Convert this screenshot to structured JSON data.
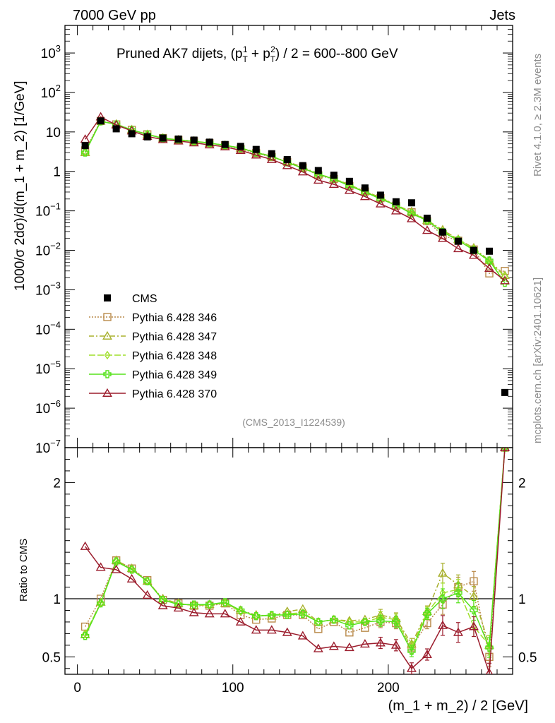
{
  "header": {
    "left": "7000 GeV pp",
    "right": "Jets"
  },
  "side_labels": {
    "top": "Rivet 4.1.0, ≥ 2.3M events",
    "bottom": "mcplots.cern.ch [arXiv:2401.10621]"
  },
  "analysis_id": "(CMS_2013_I1224539)",
  "colors": {
    "cms": "#000000",
    "p346": "#b98a4a",
    "p347": "#a8b02c",
    "p348": "#9fdf2a",
    "p349": "#55e21a",
    "p370": "#9b1c2c",
    "axis": "#000000"
  },
  "chart_data": [
    {
      "type": "line",
      "panel": "main",
      "title_prefix": "Pruned AK7 dijets, ",
      "title_formula": "(p",
      "title_sub1": "T",
      "title_sup1": "1",
      "title_plus": " + p",
      "title_sub2": "T",
      "title_sup2": "2",
      "title_suffix": ") / 2 = 600--800 GeV",
      "ylabel": "1000/σ  2dσ)/d(m_1 + m_2) [1/GeV]",
      "yscale": "log",
      "ylim": [
        1e-07,
        5000
      ],
      "xlim": [
        -8,
        280
      ],
      "y_ticks": [
        {
          "base": "10",
          "exp": "3"
        },
        {
          "base": "10",
          "exp": "2"
        },
        {
          "base": "10",
          "exp": ""
        },
        {
          "base": "1",
          "exp": ""
        },
        {
          "base": "10",
          "exp": "−1"
        },
        {
          "base": "10",
          "exp": "−2"
        },
        {
          "base": "10",
          "exp": "−3"
        },
        {
          "base": "10",
          "exp": "−4"
        },
        {
          "base": "10",
          "exp": "−5"
        },
        {
          "base": "10",
          "exp": "−6"
        },
        {
          "base": "10",
          "exp": "−7"
        }
      ],
      "y_tick_values": [
        1000,
        100,
        10,
        1,
        0.1,
        0.01,
        0.001,
        0.0001,
        1e-05,
        1e-06,
        1e-07
      ],
      "x": [
        5,
        15,
        25,
        35,
        45,
        55,
        65,
        75,
        85,
        95,
        105,
        115,
        125,
        135,
        145,
        155,
        165,
        175,
        185,
        195,
        205,
        215,
        225,
        235,
        245,
        255,
        265,
        275
      ],
      "series": [
        {
          "name": "CMS",
          "key": "cms",
          "marker": "square",
          "values": [
            4.5,
            19,
            12,
            9,
            7.5,
            7,
            6.6,
            6.2,
            5.5,
            4.8,
            4.3,
            3.6,
            2.8,
            2.0,
            1.4,
            1.05,
            0.8,
            0.56,
            0.38,
            0.25,
            0.17,
            0.16,
            0.065,
            0.029,
            0.017,
            0.01,
            0.0095,
            2.5e-06
          ]
        },
        {
          "name": "Pythia 6.428 346",
          "key": "p346",
          "marker": "open-square",
          "dash": "2,2",
          "values": [
            3.4,
            19,
            15.5,
            11.3,
            8.7,
            7.0,
            6.3,
            5.8,
            5.2,
            4.6,
            3.7,
            2.9,
            2.3,
            1.75,
            1.25,
            0.8,
            0.64,
            0.43,
            0.31,
            0.21,
            0.135,
            0.092,
            0.055,
            0.024,
            0.0175,
            0.0105,
            0.0026,
            0.003
          ]
        },
        {
          "name": "Pythia 6.428 347",
          "key": "p347",
          "marker": "open-triangle",
          "dash": "7,3,2,3",
          "values": [
            3.0,
            19,
            15.8,
            11.4,
            8.6,
            7.0,
            6.3,
            5.9,
            5.2,
            4.6,
            3.9,
            3.1,
            2.4,
            1.75,
            1.3,
            0.85,
            0.66,
            0.46,
            0.31,
            0.22,
            0.14,
            0.096,
            0.058,
            0.033,
            0.019,
            0.0115,
            0.0055,
            0.0023
          ]
        },
        {
          "name": "Pythia 6.428 348",
          "key": "p348",
          "marker": "open-diamond",
          "dash": "9,3",
          "values": [
            3.1,
            18.5,
            15.5,
            11.3,
            8.7,
            6.9,
            6.3,
            5.8,
            5.2,
            4.6,
            3.9,
            3.0,
            2.4,
            1.7,
            1.2,
            0.84,
            0.65,
            0.45,
            0.3,
            0.21,
            0.14,
            0.09,
            0.058,
            0.03,
            0.019,
            0.011,
            0.005,
            0.0022
          ]
        },
        {
          "name": "Pythia 6.428 349",
          "key": "p349",
          "marker": "open-cross",
          "dash": "",
          "values": [
            3.0,
            18.5,
            15.5,
            11.2,
            8.6,
            6.9,
            6.2,
            5.8,
            5.2,
            4.6,
            3.9,
            3.0,
            2.4,
            1.7,
            1.2,
            0.85,
            0.64,
            0.43,
            0.3,
            0.2,
            0.14,
            0.085,
            0.057,
            0.029,
            0.018,
            0.01,
            0.0055,
            0.0015
          ]
        },
        {
          "name": "Pythia 6.428 370",
          "key": "p370",
          "marker": "open-triangle",
          "dash": "",
          "values": [
            6.5,
            24,
            15,
            10.6,
            7.7,
            6.4,
            5.9,
            5.3,
            4.7,
            4.2,
            3.4,
            2.6,
            2.0,
            1.4,
            0.97,
            0.6,
            0.47,
            0.33,
            0.23,
            0.15,
            0.1,
            0.063,
            0.032,
            0.02,
            0.011,
            0.0075,
            0.0035,
            0.0017
          ]
        }
      ]
    },
    {
      "type": "line",
      "panel": "ratio",
      "ylabel": "Ratio to CMS",
      "xlabel": "(m_1 + m_2) / 2 [GeV]",
      "ylim": [
        0.35,
        2.3
      ],
      "x_ticks": [
        "0",
        "100",
        "200"
      ],
      "x_tick_values": [
        0,
        100,
        200
      ],
      "y_ticks_left": [
        "2",
        "1",
        "0.5"
      ],
      "y_ticks_right": [
        "2",
        "1",
        "0.5"
      ],
      "y_tick_values": [
        2,
        1,
        0.5
      ],
      "reference": 1,
      "x": [
        5,
        15,
        25,
        35,
        45,
        55,
        65,
        75,
        85,
        95,
        105,
        115,
        125,
        135,
        145,
        155,
        165,
        175,
        185,
        195,
        205,
        215,
        225,
        235,
        245,
        255,
        265,
        275
      ],
      "series": [
        {
          "name": "Pythia 6.428 346",
          "key": "p346",
          "marker": "open-square",
          "dash": "2,2",
          "values": [
            0.76,
            1.0,
            1.33,
            1.26,
            1.16,
            0.99,
            0.96,
            0.94,
            0.94,
            0.96,
            0.86,
            0.82,
            0.83,
            0.86,
            0.86,
            0.74,
            0.8,
            0.71,
            0.75,
            0.8,
            0.79,
            0.58,
            0.79,
            0.95,
            1.1,
            1.15,
            0.5,
            2.3
          ]
        },
        {
          "name": "Pythia 6.428 347",
          "key": "p347",
          "marker": "open-triangle",
          "dash": "7,3,2,3",
          "values": [
            0.69,
            0.97,
            1.33,
            1.26,
            1.15,
            1.0,
            0.96,
            0.94,
            0.95,
            0.96,
            0.9,
            0.86,
            0.85,
            0.89,
            0.91,
            0.8,
            0.82,
            0.81,
            0.82,
            0.86,
            0.83,
            0.61,
            0.89,
            1.22,
            1.12,
            1.02,
            0.6,
            2.3
          ]
        },
        {
          "name": "Pythia 6.428 348",
          "key": "p348",
          "marker": "open-diamond",
          "dash": "9,3",
          "values": [
            0.7,
            0.96,
            1.32,
            1.25,
            1.15,
            0.99,
            0.96,
            0.94,
            0.95,
            0.96,
            0.89,
            0.85,
            0.86,
            0.87,
            0.88,
            0.8,
            0.82,
            0.8,
            0.8,
            0.84,
            0.82,
            0.58,
            0.88,
            1.05,
            1.08,
            0.76,
            0.6,
            2.3
          ]
        },
        {
          "name": "Pythia 6.428 349",
          "key": "p349",
          "marker": "open-cross",
          "dash": "",
          "values": [
            0.68,
            0.96,
            1.32,
            1.25,
            1.15,
            0.99,
            0.95,
            0.95,
            0.95,
            0.97,
            0.9,
            0.85,
            0.86,
            0.86,
            0.87,
            0.8,
            0.82,
            0.77,
            0.8,
            0.81,
            0.8,
            0.55,
            0.87,
            1.0,
            1.05,
            0.9,
            0.58,
            2.3
          ]
        },
        {
          "name": "Pythia 6.428 370",
          "key": "p370",
          "marker": "open-triangle",
          "dash": "",
          "values": [
            1.45,
            1.27,
            1.25,
            1.17,
            1.03,
            0.94,
            0.92,
            0.88,
            0.87,
            0.87,
            0.8,
            0.73,
            0.73,
            0.71,
            0.68,
            0.57,
            0.59,
            0.58,
            0.61,
            0.62,
            0.6,
            0.4,
            0.52,
            0.77,
            0.71,
            0.76,
            0.36,
            2.3
          ]
        }
      ]
    }
  ]
}
